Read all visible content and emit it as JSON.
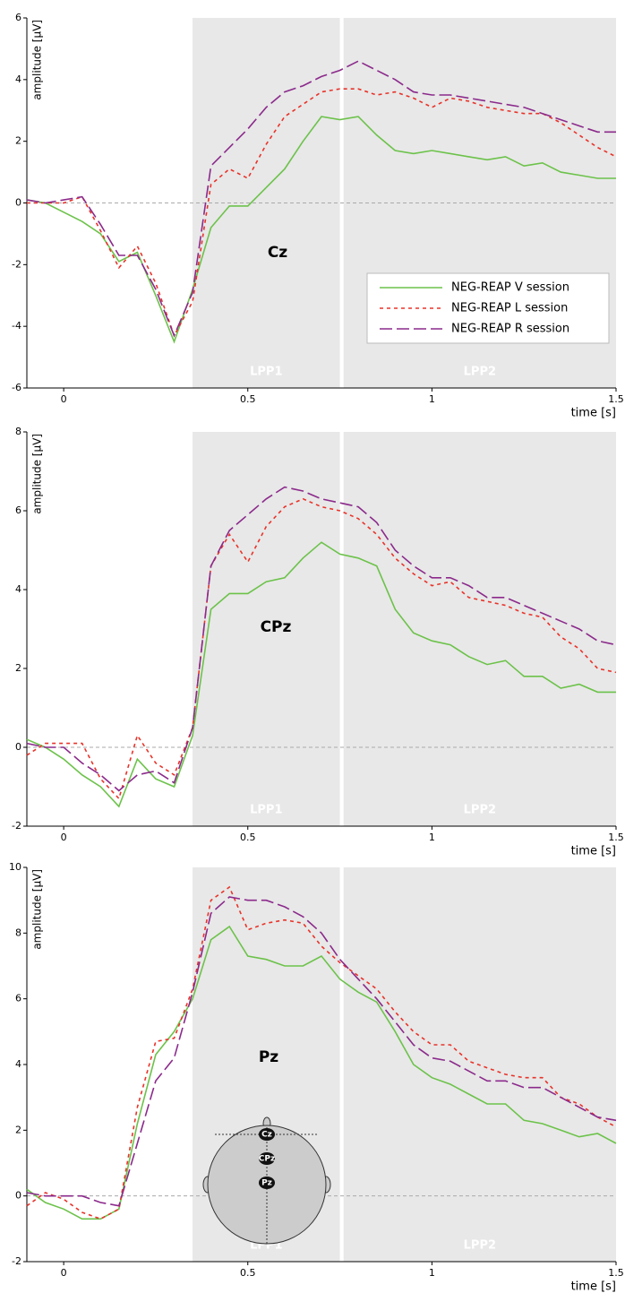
{
  "chart_data": [
    {
      "type": "line",
      "annotation": "Cz",
      "y_label": "amplitude [µV]",
      "x_label": "time [s]",
      "xlim": [
        -0.1,
        1.5
      ],
      "xticks": [
        0,
        0.5,
        1,
        1.5
      ],
      "ylim": [
        -6,
        6
      ],
      "yticks": [
        -6,
        -4,
        -2,
        0,
        2,
        4,
        6
      ],
      "windows": [
        {
          "label": "LPP1",
          "range": [
            0.35,
            0.75
          ]
        },
        {
          "label": "LPP2",
          "range": [
            0.76,
            1.5
          ]
        }
      ],
      "legend": "lower right",
      "x": [
        -0.1,
        -0.05,
        0,
        0.05,
        0.1,
        0.15,
        0.2,
        0.25,
        0.3,
        0.35,
        0.4,
        0.45,
        0.5,
        0.55,
        0.6,
        0.65,
        0.7,
        0.75,
        0.8,
        0.85,
        0.9,
        0.95,
        1.0,
        1.05,
        1.1,
        1.15,
        1.2,
        1.25,
        1.3,
        1.35,
        1.4,
        1.45,
        1.5
      ],
      "series": [
        {
          "name": "NEG-REAP V session",
          "color": "#6cc24a",
          "dash": "solid",
          "values": [
            0.1,
            0,
            -0.3,
            -0.6,
            -1.0,
            -1.9,
            -1.6,
            -3.0,
            -4.5,
            -2.8,
            -0.8,
            -0.1,
            -0.1,
            0.5,
            1.1,
            2.0,
            2.8,
            2.7,
            2.8,
            2.2,
            1.7,
            1.6,
            1.7,
            1.6,
            1.5,
            1.4,
            1.5,
            1.2,
            1.3,
            1.0,
            0.9,
            0.8,
            0.8
          ]
        },
        {
          "name": "NEG-REAP L session",
          "color": "#e8332a",
          "dash": "short",
          "values": [
            0,
            0,
            0,
            0.2,
            -0.9,
            -2.1,
            -1.4,
            -2.6,
            -4.3,
            -3.2,
            0.6,
            1.1,
            0.8,
            1.9,
            2.8,
            3.2,
            3.6,
            3.7,
            3.7,
            3.5,
            3.6,
            3.4,
            3.1,
            3.4,
            3.3,
            3.1,
            3.0,
            2.9,
            2.9,
            2.6,
            2.2,
            1.8,
            1.5
          ]
        },
        {
          "name": "NEG-REAP R session",
          "color": "#8b2a8b",
          "dash": "long",
          "values": [
            0.1,
            0,
            0.1,
            0.2,
            -0.7,
            -1.7,
            -1.7,
            -2.8,
            -4.3,
            -2.9,
            1.2,
            1.8,
            2.4,
            3.1,
            3.6,
            3.8,
            4.1,
            4.3,
            4.6,
            4.3,
            4.0,
            3.6,
            3.5,
            3.5,
            3.4,
            3.3,
            3.2,
            3.1,
            2.9,
            2.7,
            2.5,
            2.3,
            2.3
          ]
        }
      ]
    },
    {
      "type": "line",
      "annotation": "CPz",
      "y_label": "amplitude [µV]",
      "x_label": "time [s]",
      "xlim": [
        -0.1,
        1.5
      ],
      "xticks": [
        0,
        0.5,
        1,
        1.5
      ],
      "ylim": [
        -2,
        8
      ],
      "yticks": [
        -2,
        0,
        2,
        4,
        6,
        8
      ],
      "windows": [
        {
          "label": "LPP1",
          "range": [
            0.35,
            0.75
          ]
        },
        {
          "label": "LPP2",
          "range": [
            0.76,
            1.5
          ]
        }
      ],
      "x": [
        -0.1,
        -0.05,
        0,
        0.05,
        0.1,
        0.15,
        0.2,
        0.25,
        0.3,
        0.35,
        0.4,
        0.45,
        0.5,
        0.55,
        0.6,
        0.65,
        0.7,
        0.75,
        0.8,
        0.85,
        0.9,
        0.95,
        1.0,
        1.05,
        1.1,
        1.15,
        1.2,
        1.25,
        1.3,
        1.35,
        1.4,
        1.45,
        1.5
      ],
      "series": [
        {
          "color": "#6cc24a",
          "dash": "solid",
          "values": [
            0.2,
            0,
            -0.3,
            -0.7,
            -1.0,
            -1.5,
            -0.3,
            -0.8,
            -1.0,
            0.3,
            3.5,
            3.9,
            3.9,
            4.2,
            4.3,
            4.8,
            5.2,
            4.9,
            4.8,
            4.6,
            3.5,
            2.9,
            2.7,
            2.6,
            2.3,
            2.1,
            2.2,
            1.8,
            1.8,
            1.5,
            1.6,
            1.4,
            1.4
          ]
        },
        {
          "color": "#e8332a",
          "dash": "short",
          "values": [
            -0.2,
            0.1,
            0.1,
            0.1,
            -0.8,
            -1.3,
            0.3,
            -0.4,
            -0.7,
            0.5,
            4.6,
            5.4,
            4.7,
            5.6,
            6.1,
            6.3,
            6.1,
            6.0,
            5.8,
            5.4,
            4.8,
            4.4,
            4.1,
            4.2,
            3.8,
            3.7,
            3.6,
            3.4,
            3.3,
            2.8,
            2.5,
            2.0,
            1.9
          ]
        },
        {
          "color": "#8b2a8b",
          "dash": "long",
          "values": [
            0.1,
            0,
            0,
            -0.4,
            -0.7,
            -1.1,
            -0.7,
            -0.6,
            -0.9,
            0.5,
            4.6,
            5.5,
            5.9,
            6.3,
            6.6,
            6.5,
            6.3,
            6.2,
            6.1,
            5.7,
            5.0,
            4.6,
            4.3,
            4.3,
            4.1,
            3.8,
            3.8,
            3.6,
            3.4,
            3.2,
            3.0,
            2.7,
            2.6
          ]
        }
      ]
    },
    {
      "type": "line",
      "annotation": "Pz",
      "y_label": "amplitude [µV]",
      "x_label": "time [s]",
      "xlim": [
        -0.1,
        1.5
      ],
      "xticks": [
        0,
        0.5,
        1,
        1.5
      ],
      "ylim": [
        -2,
        10
      ],
      "yticks": [
        -2,
        0,
        2,
        4,
        6,
        8,
        10
      ],
      "windows": [
        {
          "label": "LPP1",
          "range": [
            0.35,
            0.75
          ]
        },
        {
          "label": "LPP2",
          "range": [
            0.76,
            1.5
          ]
        }
      ],
      "inset_labels": [
        "Cz",
        "CPz",
        "Pz"
      ],
      "x": [
        -0.1,
        -0.05,
        0,
        0.05,
        0.1,
        0.15,
        0.2,
        0.25,
        0.3,
        0.35,
        0.4,
        0.45,
        0.5,
        0.55,
        0.6,
        0.65,
        0.7,
        0.75,
        0.8,
        0.85,
        0.9,
        0.95,
        1.0,
        1.05,
        1.1,
        1.15,
        1.2,
        1.25,
        1.3,
        1.35,
        1.4,
        1.45,
        1.5
      ],
      "series": [
        {
          "color": "#6cc24a",
          "dash": "solid",
          "values": [
            0.2,
            -0.2,
            -0.4,
            -0.7,
            -0.7,
            -0.4,
            2.2,
            4.3,
            5.0,
            6.0,
            7.8,
            8.2,
            7.3,
            7.2,
            7.0,
            7.0,
            7.3,
            6.6,
            6.2,
            5.9,
            5.0,
            4.0,
            3.6,
            3.4,
            3.1,
            2.8,
            2.8,
            2.3,
            2.2,
            2.0,
            1.8,
            1.9,
            1.6
          ]
        },
        {
          "color": "#e8332a",
          "dash": "short",
          "values": [
            -0.3,
            0.1,
            -0.1,
            -0.5,
            -0.7,
            -0.4,
            2.7,
            4.7,
            4.8,
            6.3,
            9.0,
            9.4,
            8.1,
            8.3,
            8.4,
            8.3,
            7.6,
            7.1,
            6.7,
            6.3,
            5.6,
            5.0,
            4.6,
            4.6,
            4.1,
            3.9,
            3.7,
            3.6,
            3.6,
            3.0,
            2.8,
            2.4,
            2.1
          ]
        },
        {
          "color": "#8b2a8b",
          "dash": "long",
          "values": [
            0.1,
            0,
            0,
            0,
            -0.2,
            -0.3,
            1.6,
            3.5,
            4.2,
            6.2,
            8.6,
            9.1,
            9.0,
            9.0,
            8.8,
            8.5,
            8.0,
            7.2,
            6.6,
            6.0,
            5.3,
            4.6,
            4.2,
            4.1,
            3.8,
            3.5,
            3.5,
            3.3,
            3.3,
            3.0,
            2.7,
            2.4,
            2.3
          ]
        }
      ]
    }
  ]
}
